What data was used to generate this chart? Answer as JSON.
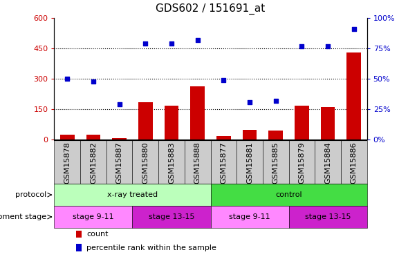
{
  "title": "GDS602 / 151691_at",
  "samples": [
    "GSM15878",
    "GSM15882",
    "GSM15887",
    "GSM15880",
    "GSM15883",
    "GSM15888",
    "GSM15877",
    "GSM15881",
    "GSM15885",
    "GSM15879",
    "GSM15884",
    "GSM15886"
  ],
  "counts": [
    25,
    25,
    10,
    185,
    170,
    265,
    20,
    50,
    45,
    170,
    160,
    430
  ],
  "percentile": [
    50,
    48,
    29,
    79,
    79,
    82,
    49,
    31,
    32,
    77,
    77,
    91
  ],
  "left_ylim": [
    0,
    600
  ],
  "right_ylim": [
    0,
    100
  ],
  "left_yticks": [
    0,
    150,
    300,
    450,
    600
  ],
  "right_yticks": [
    0,
    25,
    50,
    75,
    100
  ],
  "left_yticklabels": [
    "0",
    "150",
    "300",
    "450",
    "600"
  ],
  "right_yticklabels": [
    "0%",
    "25%",
    "50%",
    "75%",
    "100%"
  ],
  "bar_color": "#cc0000",
  "dot_color": "#0000cc",
  "bg_color": "#ffffff",
  "plot_bg_color": "#ffffff",
  "label_bg_color": "#cccccc",
  "protocol_segments": [
    {
      "text": "x-ray treated",
      "start": 0,
      "end": 6,
      "color": "#bbffbb"
    },
    {
      "text": "control",
      "start": 6,
      "end": 12,
      "color": "#44dd44"
    }
  ],
  "dev_segments": [
    {
      "text": "stage 9-11",
      "start": 0,
      "end": 3,
      "color": "#ff88ff"
    },
    {
      "text": "stage 13-15",
      "start": 3,
      "end": 6,
      "color": "#cc22cc"
    },
    {
      "text": "stage 9-11",
      "start": 6,
      "end": 9,
      "color": "#ff88ff"
    },
    {
      "text": "stage 13-15",
      "start": 9,
      "end": 12,
      "color": "#cc22cc"
    }
  ],
  "legend_count_color": "#cc0000",
  "legend_dot_color": "#0000cc",
  "title_fontsize": 11,
  "tick_fontsize": 8,
  "row_fontsize": 8,
  "label_fontsize": 8
}
